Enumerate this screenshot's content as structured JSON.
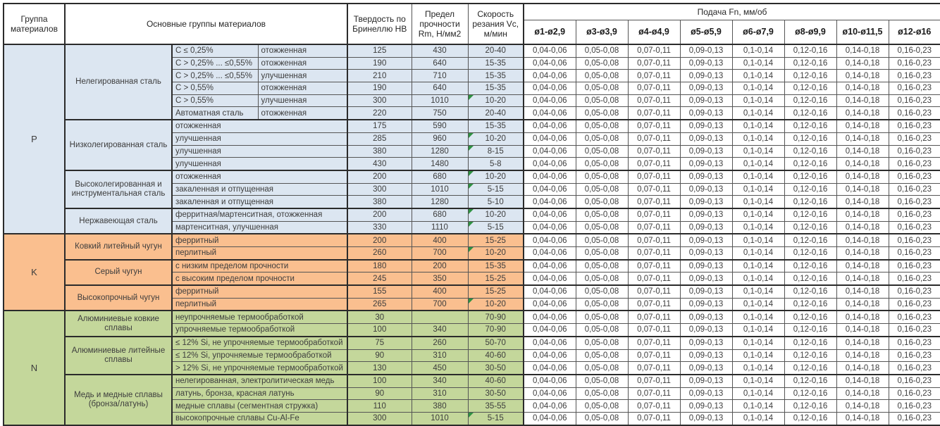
{
  "header": {
    "col_group": "Группа материалов",
    "col_main": "Основные группы материалов",
    "col_hb": "Твердость по Бринеллю HB",
    "col_rm": "Предел прочности Rm, Н/мм2",
    "col_vc": "Скорость резания Vc, м/мин",
    "feed_title": "Подача Fn, мм/об",
    "diameters": [
      "ø1-ø2,9",
      "ø3-ø3,9",
      "ø4-ø4,9",
      "ø5-ø5,9",
      "ø6-ø7,9",
      "ø8-ø9,9",
      "ø10-ø11,5",
      "ø12-ø16"
    ]
  },
  "feed_values": [
    "0,04-0,06",
    "0,05-0,08",
    "0,07-0,11",
    "0,09-0,13",
    "0,1-0,14",
    "0,12-0,16",
    "0,14-0,18",
    "0,16-0,23"
  ],
  "colors": {
    "group_p": "#dce6f1",
    "group_k": "#fabf8f",
    "group_n": "#c4d79b",
    "feed_bg": "#ffffff",
    "marker_green": "#2f9242"
  },
  "groups": [
    {
      "letter": "P",
      "color_key": "group_p",
      "subgroups": [
        {
          "name": "Нелегированная сталь",
          "rows": [
            {
              "sub1": "C ≤ 0,25%",
              "sub2": "отожженная",
              "hb": "125",
              "rm": "430",
              "vc": "20-40",
              "marker": false
            },
            {
              "sub1": "C > 0,25% ... ≤0,55%",
              "sub2": "отожженная",
              "hb": "190",
              "rm": "640",
              "vc": "15-35",
              "marker": false
            },
            {
              "sub1": "C > 0,25% ... ≤0,55%",
              "sub2": "улучшенная",
              "hb": "210",
              "rm": "710",
              "vc": "15-35",
              "marker": false
            },
            {
              "sub1": "C > 0,55%",
              "sub2": "отожженная",
              "hb": "190",
              "rm": "640",
              "vc": "15-35",
              "marker": false
            },
            {
              "sub1": "C > 0,55%",
              "sub2": "улучшенная",
              "hb": "300",
              "rm": "1010",
              "vc": "10-20",
              "marker": true
            },
            {
              "sub1": "Автоматная сталь",
              "sub2": "отожженная",
              "hb": "220",
              "rm": "750",
              "vc": "20-40",
              "marker": false
            }
          ]
        },
        {
          "name": "Низколегированная сталь",
          "rows": [
            {
              "sub": "отожженная",
              "hb": "175",
              "rm": "590",
              "vc": "15-35",
              "marker": false
            },
            {
              "sub": "улучшенная",
              "hb": "285",
              "rm": "960",
              "vc": "10-20",
              "marker": true
            },
            {
              "sub": "улучшенная",
              "hb": "380",
              "rm": "1280",
              "vc": "8-15",
              "marker": true
            },
            {
              "sub": "улучшенная",
              "hb": "430",
              "rm": "1480",
              "vc": "5-8",
              "marker": false
            }
          ]
        },
        {
          "name": "Высоколегированная и инструментальная сталь",
          "rows": [
            {
              "sub": "отожженная",
              "hb": "200",
              "rm": "680",
              "vc": "10-20",
              "marker": true
            },
            {
              "sub": "закаленная и отпущенная",
              "hb": "300",
              "rm": "1010",
              "vc": "5-15",
              "marker": true
            },
            {
              "sub": "закаленная и отпущенная",
              "hb": "380",
              "rm": "1280",
              "vc": "5-10",
              "marker": false
            }
          ]
        },
        {
          "name": "Нержавеющая сталь",
          "rows": [
            {
              "sub": "ферритная/мартенситная, отожженная",
              "hb": "200",
              "rm": "680",
              "vc": "10-20",
              "marker": true
            },
            {
              "sub": "мартенситная, улучшенная",
              "hb": "330",
              "rm": "1110",
              "vc": "5-15",
              "marker": true
            }
          ]
        }
      ]
    },
    {
      "letter": "K",
      "color_key": "group_k",
      "subgroups": [
        {
          "name": "Ковкий литейный чугун",
          "rows": [
            {
              "sub": "ферритный",
              "hb": "200",
              "rm": "400",
              "vc": "15-25",
              "marker": false
            },
            {
              "sub": "перлитный",
              "hb": "260",
              "rm": "700",
              "vc": "10-20",
              "marker": true
            }
          ]
        },
        {
          "name": "Серый чугун",
          "rows": [
            {
              "sub": "с низким пределом прочности",
              "hb": "180",
              "rm": "200",
              "vc": "15-35",
              "marker": false
            },
            {
              "sub": "с высоким пределом прочности",
              "hb": "245",
              "rm": "350",
              "vc": "15-25",
              "marker": false
            }
          ]
        },
        {
          "name": "Высокопрочный чугун",
          "rows": [
            {
              "sub": "ферритный",
              "hb": "155",
              "rm": "400",
              "vc": "15-25",
              "marker": false
            },
            {
              "sub": "перлитный",
              "hb": "265",
              "rm": "700",
              "vc": "10-20",
              "marker": true
            }
          ]
        }
      ]
    },
    {
      "letter": "N",
      "color_key": "group_n",
      "subgroups": [
        {
          "name": "Алюминиевые ковкие сплавы",
          "rows": [
            {
              "sub": "неупрочняемые термообработкой",
              "hb": "30",
              "rm": "",
              "vc": "70-90",
              "marker": false
            },
            {
              "sub": "упрочняемые термообработкой",
              "hb": "100",
              "rm": "340",
              "vc": "70-90",
              "marker": false
            }
          ]
        },
        {
          "name": "Алюминиевые литейные сплавы",
          "rows": [
            {
              "sub": "≤ 12% Si, не упрочняемые термообработкой",
              "hb": "75",
              "rm": "260",
              "vc": "50-70",
              "marker": false
            },
            {
              "sub": "≤ 12% Si, упрочняемые термообработкой",
              "hb": "90",
              "rm": "310",
              "vc": "40-60",
              "marker": false
            },
            {
              "sub": "> 12% Si, не упрочняемые термообработкой",
              "hb": "130",
              "rm": "450",
              "vc": "30-50",
              "marker": false
            }
          ]
        },
        {
          "name": "Медь и медные сплавы (бронза/латунь)",
          "rows": [
            {
              "sub": "нелегированная, электролитическая медь",
              "hb": "100",
              "rm": "340",
              "vc": "40-60",
              "marker": false
            },
            {
              "sub": "латунь, бронза, красная латунь",
              "hb": "90",
              "rm": "310",
              "vc": "30-50",
              "marker": false
            },
            {
              "sub": "медные сплавы (сегментная стружка)",
              "hb": "110",
              "rm": "380",
              "vc": "35-55",
              "marker": false
            },
            {
              "sub": "высокопрочные сплавы Cu-Al-Fe",
              "hb": "300",
              "rm": "1010",
              "vc": "5-15",
              "marker": true
            }
          ]
        }
      ]
    }
  ]
}
